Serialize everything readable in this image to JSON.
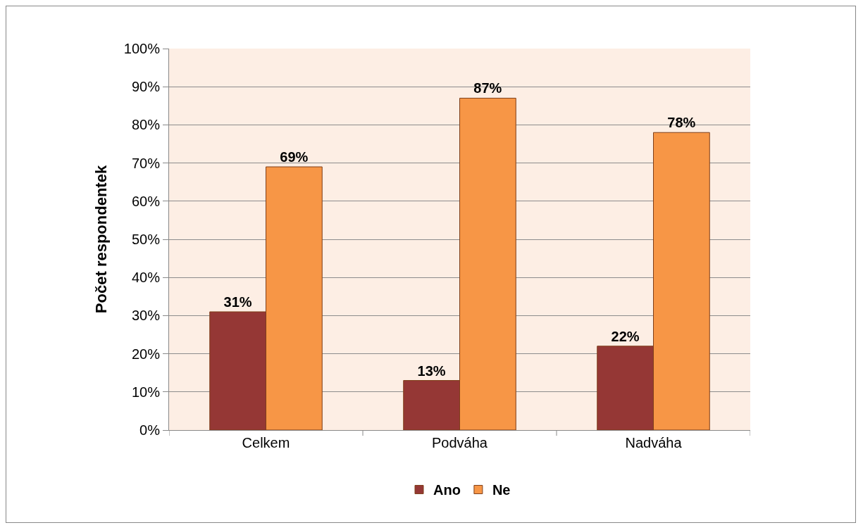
{
  "chart_data": {
    "type": "bar",
    "ylabel": "Počet respondentek",
    "categories": [
      "Celkem",
      "Podváha",
      "Nadváha"
    ],
    "series": [
      {
        "name": "Ano",
        "color": "#953735",
        "values": [
          31,
          13,
          22
        ],
        "value_labels": [
          "31%",
          "13%",
          "22%"
        ]
      },
      {
        "name": "Ne",
        "color": "#f79646",
        "values": [
          69,
          87,
          78
        ],
        "value_labels": [
          "69%",
          "87%",
          "78%"
        ]
      }
    ],
    "ylim": [
      0,
      100
    ],
    "yticks": [
      {
        "value": 0,
        "label": "0%"
      },
      {
        "value": 10,
        "label": "10%"
      },
      {
        "value": 20,
        "label": "20%"
      },
      {
        "value": 30,
        "label": "30%"
      },
      {
        "value": 40,
        "label": "40%"
      },
      {
        "value": 50,
        "label": "50%"
      },
      {
        "value": 60,
        "label": "60%"
      },
      {
        "value": 70,
        "label": "70%"
      },
      {
        "value": 80,
        "label": "80%"
      },
      {
        "value": 90,
        "label": "90%"
      },
      {
        "value": 100,
        "label": "100%"
      }
    ],
    "grid": "y",
    "legend": "bottom"
  }
}
